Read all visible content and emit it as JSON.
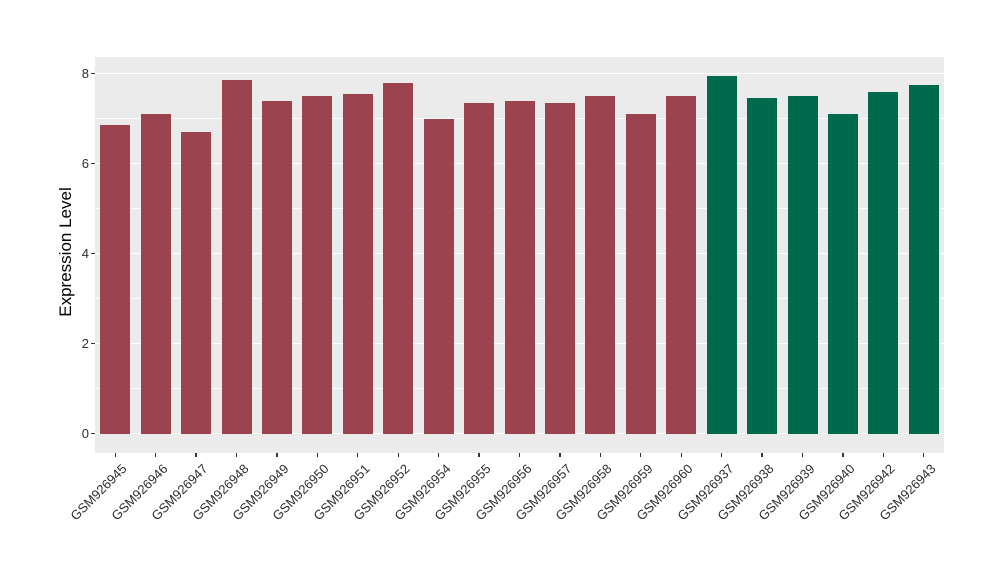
{
  "chart_data": {
    "type": "bar",
    "title": "",
    "xlabel": "",
    "ylabel": "Expression Level",
    "ylim": [
      0,
      8.4
    ],
    "yticks": [
      0,
      2,
      4,
      6,
      8
    ],
    "minor_yticks": [
      1,
      3,
      5,
      7
    ],
    "grid": "on",
    "legend": "none",
    "categories": [
      "GSM926945",
      "GSM926946",
      "GSM926947",
      "GSM926948",
      "GSM926949",
      "GSM926950",
      "GSM926951",
      "GSM926952",
      "GSM926954",
      "GSM926955",
      "GSM926956",
      "GSM926957",
      "GSM926958",
      "GSM926959",
      "GSM926960",
      "GSM926937",
      "GSM926938",
      "GSM926939",
      "GSM926940",
      "GSM926942",
      "GSM926943"
    ],
    "values": [
      6.85,
      7.1,
      6.7,
      7.85,
      7.4,
      7.5,
      7.55,
      7.8,
      7.0,
      7.35,
      7.4,
      7.35,
      7.5,
      7.1,
      7.5,
      7.95,
      7.45,
      7.5,
      7.1,
      7.6,
      7.75
    ],
    "bar_colors": [
      "#9B4450",
      "#9B4450",
      "#9B4450",
      "#9B4450",
      "#9B4450",
      "#9B4450",
      "#9B4450",
      "#9B4450",
      "#9B4450",
      "#9B4450",
      "#9B4450",
      "#9B4450",
      "#9B4450",
      "#9B4450",
      "#9B4450",
      "#006B4C",
      "#006B4C",
      "#006B4C",
      "#006B4C",
      "#006B4C",
      "#006B4C"
    ],
    "group_colors": {
      "group_1": "#9B4450",
      "group_2": "#006B4C"
    },
    "panel_background": "#EBEBEB",
    "grid_color": "#FFFFFF",
    "tick_mark_color": "#333333",
    "tick_label_color": "#2E2E2E",
    "figure_background": "#FFFFFF"
  }
}
